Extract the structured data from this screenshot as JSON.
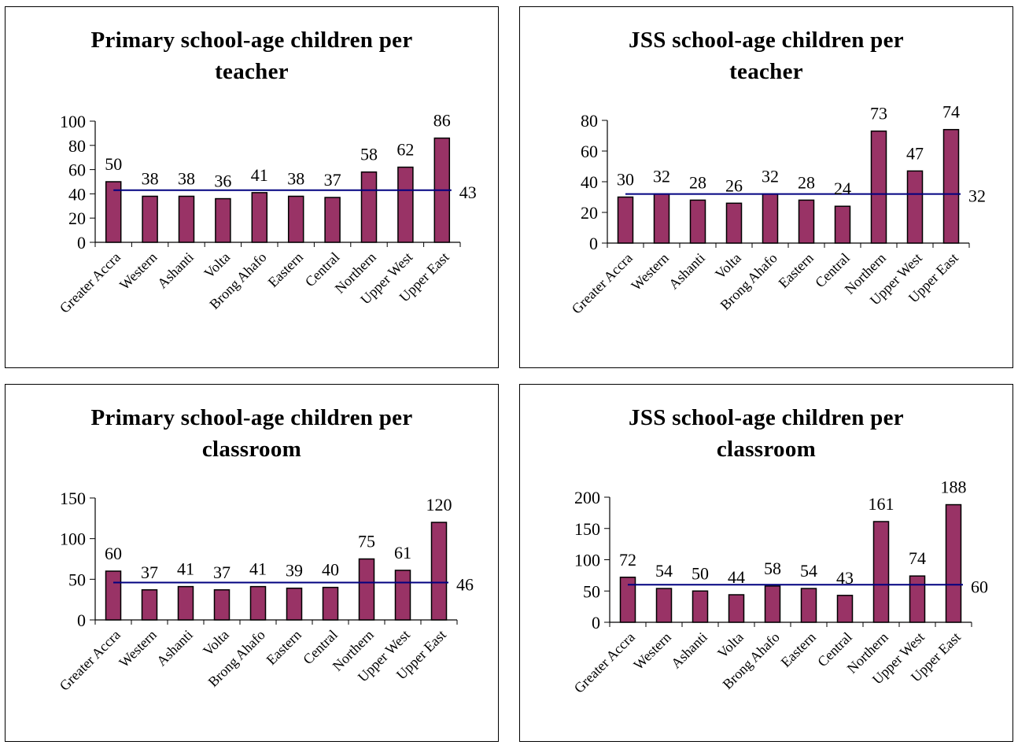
{
  "colors": {
    "bar": "#993366",
    "bar_stroke": "#000000",
    "average_line": "#000080"
  },
  "chart_data": [
    {
      "type": "bar",
      "title_lines": [
        "Primary school-age children per",
        "teacher"
      ],
      "categories": [
        "Greater Accra",
        "Western",
        "Ashanti",
        "Volta",
        "Brong Ahafo",
        "Eastern",
        "Central",
        "Northern",
        "Upper West",
        "Upper East"
      ],
      "values": [
        50,
        38,
        38,
        36,
        41,
        38,
        37,
        58,
        62,
        86
      ],
      "data_labels": [
        "50",
        "38",
        "38",
        "36",
        "41",
        "38",
        "37",
        "58",
        "62",
        "86"
      ],
      "average": 43,
      "average_label": "43",
      "ylim": [
        0,
        100
      ],
      "yticks": [
        0,
        20,
        40,
        60,
        80,
        100
      ],
      "grid": false,
      "legend": "none"
    },
    {
      "type": "bar",
      "title_lines": [
        "JSS school-age children per",
        "teacher"
      ],
      "categories": [
        "Greater Accra",
        "Western",
        "Ashanti",
        "Volta",
        "Brong Ahafo",
        "Eastern",
        "Central",
        "Northern",
        "Upper West",
        "Upper East"
      ],
      "values": [
        30,
        32,
        28,
        26,
        32,
        28,
        24,
        73,
        47,
        74
      ],
      "data_labels": [
        "30",
        "32",
        "28",
        "26",
        "32",
        "28",
        "24",
        "73",
        "47",
        "74"
      ],
      "average": 32,
      "average_label": "32",
      "ylim": [
        0,
        80
      ],
      "yticks": [
        0,
        20,
        40,
        60,
        80
      ],
      "grid": false,
      "legend": "none"
    },
    {
      "type": "bar",
      "title_lines": [
        "Primary school-age children per",
        "classroom"
      ],
      "categories": [
        "Greater Accra",
        "Western",
        "Ashanti",
        "Volta",
        "Brong Ahafo",
        "Eastern",
        "Central",
        "Northern",
        "Upper West",
        "Upper East"
      ],
      "values": [
        60,
        37,
        41,
        37,
        41,
        39,
        40,
        75,
        61,
        120
      ],
      "data_labels": [
        "60",
        "37",
        "41",
        "37",
        "41",
        "39",
        "40",
        "75",
        "61",
        "120"
      ],
      "average": 46,
      "average_label": "46",
      "ylim": [
        0,
        150
      ],
      "yticks": [
        0,
        50,
        100,
        150
      ],
      "grid": false,
      "legend": "none"
    },
    {
      "type": "bar",
      "title_lines": [
        "JSS school-age children per",
        "classroom"
      ],
      "categories": [
        "Greater Accra",
        "Western",
        "Ashanti",
        "Volta",
        "Brong Ahafo",
        "Eastern",
        "Central",
        "Northern",
        "Upper West",
        "Upper East"
      ],
      "values": [
        72,
        54,
        50,
        44,
        58,
        54,
        43,
        161,
        74,
        188
      ],
      "data_labels": [
        "72",
        "54",
        "50",
        "44",
        "58",
        "54",
        "43",
        "161",
        "74",
        "188"
      ],
      "average": 60,
      "average_label": "60",
      "ylim": [
        0,
        200
      ],
      "yticks": [
        0,
        50,
        100,
        150,
        200
      ],
      "grid": false,
      "legend": "none"
    }
  ]
}
